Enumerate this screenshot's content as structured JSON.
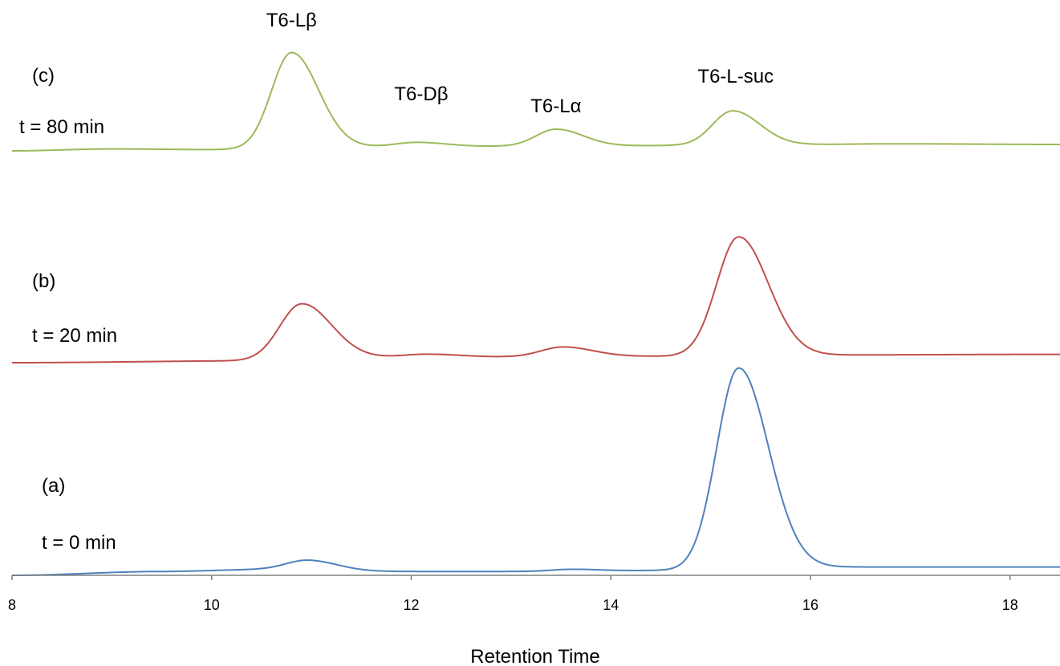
{
  "chart_data": {
    "type": "line",
    "title": "",
    "xlabel": "Retention Time",
    "ylabel": "",
    "xlim": [
      8,
      18.5
    ],
    "x_ticks": [
      "8",
      "10",
      "12",
      "14",
      "16",
      "18"
    ],
    "grid": false,
    "legend": "none",
    "peak_labels": [
      {
        "text": "T6-Lβ",
        "x": 10.8
      },
      {
        "text": "T6-Dβ",
        "x": 12.1
      },
      {
        "text": "T6-Lα",
        "x": 13.45
      },
      {
        "text": "T6-L-suc",
        "x": 15.25
      }
    ],
    "series": [
      {
        "panel": "(a)",
        "time": "t = 0 min",
        "color": "#4f81bd",
        "baseline": [
          [
            8,
            0.0
          ],
          [
            9.5,
            0.6
          ],
          [
            10.5,
            0.9
          ],
          [
            11.5,
            0.6
          ],
          [
            13,
            0.6
          ],
          [
            15,
            0.8
          ],
          [
            16,
            1.3
          ],
          [
            18.5,
            1.3
          ]
        ],
        "peaks": [
          {
            "x": 10.97,
            "height": 1.6,
            "width": 0.22
          },
          {
            "x": 13.6,
            "height": 0.3,
            "width": 0.2
          },
          {
            "x": 15.28,
            "height": 31.4,
            "width": 0.22
          }
        ]
      },
      {
        "panel": "(b)",
        "time": "t = 20 min",
        "color": "#c0504d",
        "baseline": [
          [
            8,
            0.0
          ],
          [
            10.5,
            0.3
          ],
          [
            11.5,
            0.8
          ],
          [
            14.5,
            1.0
          ],
          [
            16,
            1.2
          ],
          [
            18.5,
            1.3
          ]
        ],
        "peaks": [
          {
            "x": 10.9,
            "height": 8.7,
            "width": 0.22
          },
          {
            "x": 12.15,
            "height": 0.5,
            "width": 0.25
          },
          {
            "x": 13.52,
            "height": 1.5,
            "width": 0.22
          },
          {
            "x": 15.28,
            "height": 18.5,
            "width": 0.22
          }
        ]
      },
      {
        "panel": "(c)",
        "time": "t = 80 min",
        "color": "#9bbb59",
        "baseline": [
          [
            8,
            0.0
          ],
          [
            9,
            0.3
          ],
          [
            10,
            0.2
          ],
          [
            11.5,
            0.6
          ],
          [
            14,
            0.8
          ],
          [
            16,
            1.0
          ],
          [
            16.8,
            1.1
          ],
          [
            18.5,
            1.0
          ]
        ],
        "peaks": [
          {
            "x": 10.8,
            "height": 14.9,
            "width": 0.2
          },
          {
            "x": 12.05,
            "height": 0.7,
            "width": 0.22
          },
          {
            "x": 13.45,
            "height": 2.6,
            "width": 0.2
          },
          {
            "x": 15.22,
            "height": 5.3,
            "width": 0.2
          }
        ]
      }
    ]
  }
}
